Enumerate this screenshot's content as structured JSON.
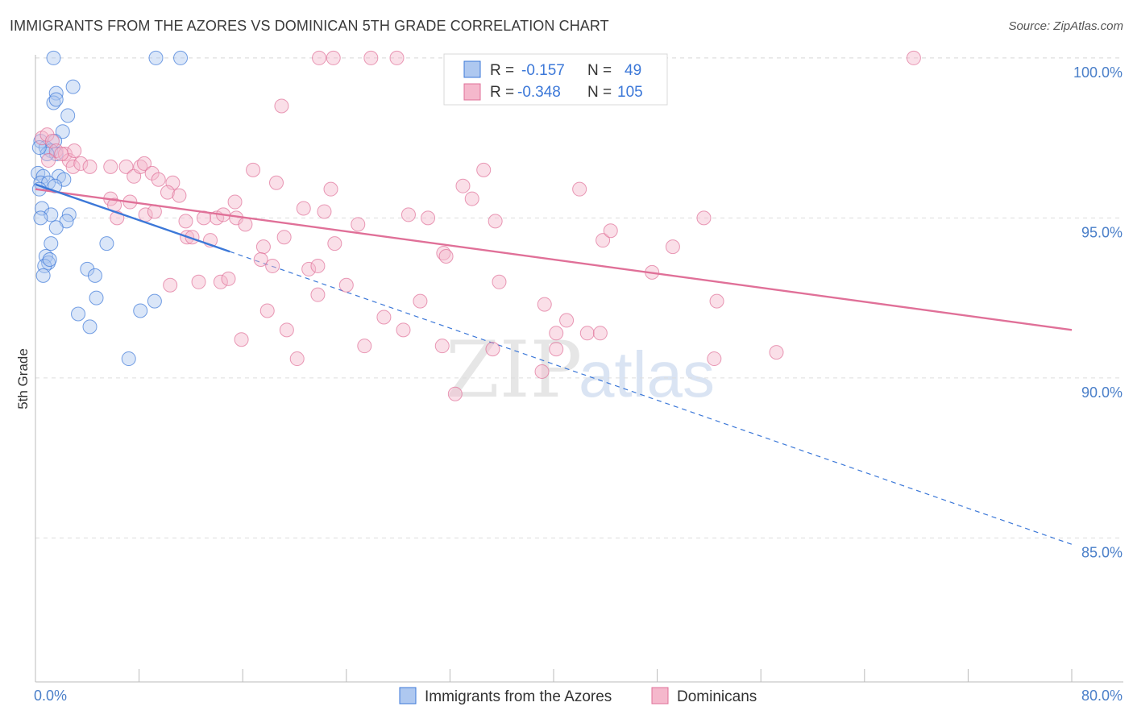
{
  "title": "IMMIGRANTS FROM THE AZORES VS DOMINICAN 5TH GRADE CORRELATION CHART",
  "source": "Source: ZipAtlas.com",
  "watermark": {
    "zip": "ZIP",
    "atlas": "atlas"
  },
  "colors": {
    "blue": "#3c78d8",
    "blue_fill": "#aec8f0",
    "pink": "#e07098",
    "pink_fill": "#f5b8cc",
    "grid": "#dddddd",
    "tick_text": "#4a7fc9"
  },
  "legend": {
    "blue": {
      "r_label": "R =",
      "r_value": "-0.157",
      "n_label": "N =",
      "n_value": "49"
    },
    "pink": {
      "r_label": "R =",
      "r_value": "-0.348",
      "n_label": "N =",
      "n_value": "105"
    }
  },
  "chart_data": {
    "type": "scatter",
    "title": "IMMIGRANTS FROM THE AZORES VS DOMINICAN 5TH GRADE CORRELATION CHART",
    "xlabel": "",
    "ylabel": "5th Grade",
    "xlim": [
      0,
      80
    ],
    "ylim": [
      80.5,
      100.3
    ],
    "x_tick_labels": [
      "0.0%",
      "80.0%"
    ],
    "y_ticks": [
      85,
      90,
      95,
      100
    ],
    "y_tick_labels": [
      "85.0%",
      "90.0%",
      "95.0%",
      "100.0%"
    ],
    "grid": true,
    "legend_position": "bottom-center",
    "series": [
      {
        "name": "Immigrants from the Azores",
        "color": "#3c78d8",
        "trend": {
          "x0": 0,
          "y0": 96.05,
          "x1": 15,
          "y1": 93.95,
          "dashed_to_x": 80,
          "dashed_to_y": 84.8
        },
        "points": [
          [
            1.4,
            100
          ],
          [
            9.3,
            100
          ],
          [
            11.2,
            100
          ],
          [
            2.9,
            99.1
          ],
          [
            1.6,
            98.9
          ],
          [
            1.4,
            98.6
          ],
          [
            1.6,
            98.7
          ],
          [
            2.5,
            98.2
          ],
          [
            2.1,
            97.7
          ],
          [
            0.4,
            97.4
          ],
          [
            1.5,
            97.4
          ],
          [
            0.8,
            97.2
          ],
          [
            1.2,
            97.1
          ],
          [
            1.6,
            97.0
          ],
          [
            0.9,
            97.0
          ],
          [
            0.3,
            97.2
          ],
          [
            0.2,
            96.4
          ],
          [
            1.8,
            96.3
          ],
          [
            2.2,
            96.2
          ],
          [
            0.6,
            96.3
          ],
          [
            0.4,
            96.1
          ],
          [
            1.0,
            96.1
          ],
          [
            0.3,
            95.9
          ],
          [
            1.5,
            96.0
          ],
          [
            0.5,
            95.3
          ],
          [
            1.2,
            95.1
          ],
          [
            2.6,
            95.1
          ],
          [
            0.4,
            95.0
          ],
          [
            2.4,
            94.9
          ],
          [
            1.6,
            94.7
          ],
          [
            1.2,
            94.2
          ],
          [
            5.5,
            94.2
          ],
          [
            0.8,
            93.8
          ],
          [
            1.0,
            93.6
          ],
          [
            0.7,
            93.5
          ],
          [
            1.1,
            93.7
          ],
          [
            4.0,
            93.4
          ],
          [
            4.6,
            93.2
          ],
          [
            0.6,
            93.2
          ],
          [
            4.7,
            92.5
          ],
          [
            9.2,
            92.4
          ],
          [
            3.3,
            92.0
          ],
          [
            8.1,
            92.1
          ],
          [
            4.2,
            91.6
          ],
          [
            7.2,
            90.6
          ]
        ]
      },
      {
        "name": "Dominicans",
        "color": "#e07098",
        "trend": {
          "x0": 0,
          "y0": 95.9,
          "x1": 80,
          "y1": 91.5
        },
        "points": [
          [
            21.9,
            100
          ],
          [
            23.0,
            100
          ],
          [
            25.9,
            100
          ],
          [
            27.9,
            100
          ],
          [
            67.8,
            100
          ],
          [
            19.0,
            98.5
          ],
          [
            0.5,
            97.5
          ],
          [
            0.9,
            97.6
          ],
          [
            1.3,
            97.4
          ],
          [
            1.6,
            97.1
          ],
          [
            2.3,
            97.0
          ],
          [
            2.6,
            96.8
          ],
          [
            2.9,
            96.6
          ],
          [
            3.5,
            96.7
          ],
          [
            4.2,
            96.6
          ],
          [
            5.8,
            96.6
          ],
          [
            7.0,
            96.6
          ],
          [
            7.6,
            96.3
          ],
          [
            8.1,
            96.6
          ],
          [
            8.4,
            96.7
          ],
          [
            9.0,
            96.4
          ],
          [
            9.5,
            96.2
          ],
          [
            10.6,
            96.1
          ],
          [
            16.8,
            96.5
          ],
          [
            18.6,
            96.1
          ],
          [
            22.8,
            95.9
          ],
          [
            33.0,
            96.0
          ],
          [
            34.6,
            96.5
          ],
          [
            42.0,
            95.9
          ],
          [
            10.2,
            95.8
          ],
          [
            11.1,
            95.7
          ],
          [
            5.8,
            95.6
          ],
          [
            6.1,
            95.4
          ],
          [
            8.5,
            95.1
          ],
          [
            7.3,
            95.5
          ],
          [
            15.4,
            95.5
          ],
          [
            20.7,
            95.3
          ],
          [
            22.3,
            95.2
          ],
          [
            28.8,
            95.1
          ],
          [
            30.3,
            95.0
          ],
          [
            33.7,
            95.6
          ],
          [
            35.5,
            94.9
          ],
          [
            14.0,
            95.0
          ],
          [
            14.5,
            95.1
          ],
          [
            11.6,
            94.9
          ],
          [
            15.5,
            95.0
          ],
          [
            16.2,
            94.8
          ],
          [
            24.9,
            94.8
          ],
          [
            11.7,
            94.4
          ],
          [
            12.1,
            94.4
          ],
          [
            13.5,
            94.3
          ],
          [
            19.2,
            94.4
          ],
          [
            23.1,
            94.2
          ],
          [
            17.6,
            94.1
          ],
          [
            31.5,
            93.9
          ],
          [
            31.7,
            93.8
          ],
          [
            43.8,
            94.3
          ],
          [
            44.4,
            94.6
          ],
          [
            49.2,
            94.1
          ],
          [
            51.6,
            95.0
          ],
          [
            17.4,
            93.7
          ],
          [
            18.3,
            93.5
          ],
          [
            21.1,
            93.4
          ],
          [
            21.8,
            93.5
          ],
          [
            12.6,
            93.0
          ],
          [
            14.3,
            93.0
          ],
          [
            14.9,
            93.1
          ],
          [
            10.4,
            92.9
          ],
          [
            24.0,
            92.9
          ],
          [
            21.8,
            92.6
          ],
          [
            35.8,
            93.0
          ],
          [
            47.6,
            93.3
          ],
          [
            17.9,
            92.1
          ],
          [
            26.9,
            91.9
          ],
          [
            29.7,
            92.4
          ],
          [
            39.3,
            92.3
          ],
          [
            41.0,
            91.8
          ],
          [
            52.6,
            92.4
          ],
          [
            15.9,
            91.2
          ],
          [
            19.4,
            91.5
          ],
          [
            28.4,
            91.5
          ],
          [
            31.4,
            91.0
          ],
          [
            40.2,
            91.4
          ],
          [
            42.6,
            91.4
          ],
          [
            43.6,
            91.4
          ],
          [
            25.4,
            91.0
          ],
          [
            35.3,
            90.9
          ],
          [
            20.2,
            90.6
          ],
          [
            40.2,
            90.9
          ],
          [
            39.1,
            90.2
          ],
          [
            52.4,
            90.6
          ],
          [
            57.2,
            90.8
          ],
          [
            32.4,
            89.5
          ],
          [
            2.0,
            97.0
          ],
          [
            1.0,
            96.8
          ],
          [
            3.0,
            97.1
          ],
          [
            6.3,
            95.0
          ],
          [
            13.0,
            95.0
          ],
          [
            9.2,
            95.2
          ]
        ]
      }
    ]
  },
  "axis": {
    "ylabel": "5th Grade",
    "x_left": "0.0%",
    "x_right": "80.0%"
  },
  "bottom_legend": [
    {
      "label": "Immigrants from the Azores"
    },
    {
      "label": "Dominicans"
    }
  ]
}
